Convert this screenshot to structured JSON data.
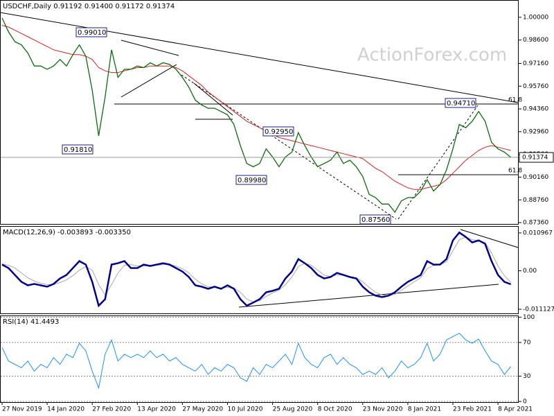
{
  "chart_data": [
    {
      "type": "line",
      "title": "USDCHF,Daily  0.91192 0.91400 0.91172 0.91374",
      "watermark": "ActionForex.com",
      "categories": [
        "27 Nov 2019",
        null,
        null,
        null,
        null,
        null,
        null,
        "14 Jan 2020",
        null,
        null,
        null,
        null,
        null,
        null,
        "27 Feb 2020",
        null,
        null,
        null,
        null,
        null,
        null,
        "13 Apr 2020",
        null,
        null,
        null,
        null,
        null,
        null,
        "27 May 2020",
        null,
        null,
        null,
        null,
        null,
        null,
        "10 Jul 2020",
        null,
        null,
        null,
        null,
        null,
        null,
        "25 Aug 2020",
        null,
        null,
        null,
        null,
        null,
        null,
        "8 Oct 2020",
        null,
        null,
        null,
        null,
        null,
        null,
        "23 Nov 2020",
        null,
        null,
        null,
        null,
        null,
        null,
        "8 Jan 2021",
        null,
        null,
        null,
        null,
        null,
        null,
        "23 Feb 2021",
        null,
        null,
        null,
        null,
        null,
        null,
        "8 Apr 2021",
        null,
        null
      ],
      "series": [
        {
          "name": "USDCHF",
          "color": "#0b6b0b",
          "values": [
            0.9996,
            0.991,
            0.985,
            0.983,
            0.978,
            0.97,
            0.97,
            0.968,
            0.97,
            0.974,
            0.97,
            0.977,
            0.983,
            0.976,
            0.955,
            0.927,
            0.951,
            0.98,
            0.963,
            0.968,
            0.968,
            0.97,
            0.969,
            0.972,
            0.97,
            0.972,
            0.971,
            0.968,
            0.963,
            0.957,
            0.949,
            0.946,
            0.944,
            0.944,
            0.942,
            0.94,
            0.934,
            0.921,
            0.91,
            0.908,
            0.91,
            0.919,
            0.914,
            0.908,
            0.914,
            0.917,
            0.929,
            0.921,
            0.914,
            0.908,
            0.91,
            0.912,
            0.917,
            0.91,
            0.912,
            0.908,
            0.902,
            0.891,
            0.889,
            0.885,
            0.885,
            0.88,
            0.887,
            0.889,
            0.889,
            0.893,
            0.9,
            0.893,
            0.897,
            0.906,
            0.919,
            0.934,
            0.932,
            0.936,
            0.942,
            0.936,
            0.923,
            0.919,
            0.917,
            0.91374
          ]
        },
        {
          "name": "MA",
          "color": "#d42020",
          "values": [
            0.995,
            0.994,
            0.992,
            0.99,
            0.988,
            0.986,
            0.984,
            0.982,
            0.98,
            0.979,
            0.978,
            0.977,
            0.977,
            0.976,
            0.974,
            0.969,
            0.967,
            0.966,
            0.966,
            0.967,
            0.968,
            0.969,
            0.969,
            0.97,
            0.97,
            0.97,
            0.97,
            0.969,
            0.967,
            0.964,
            0.961,
            0.958,
            0.954,
            0.951,
            0.948,
            0.945,
            0.942,
            0.939,
            0.936,
            0.934,
            0.932,
            0.93,
            0.928,
            0.926,
            0.925,
            0.924,
            0.923,
            0.922,
            0.921,
            0.92,
            0.919,
            0.918,
            0.917,
            0.916,
            0.915,
            0.914,
            0.913,
            0.91,
            0.907,
            0.905,
            0.902,
            0.899,
            0.897,
            0.895,
            0.894,
            0.894,
            0.895,
            0.896,
            0.897,
            0.9,
            0.904,
            0.908,
            0.912,
            0.915,
            0.918,
            0.92,
            0.921,
            0.92,
            0.919,
            0.918
          ]
        }
      ],
      "ylim": [
        0.87277,
        1.01021
      ],
      "yticks": [
        {
          "value": 1.0,
          "label": "1.00000"
        },
        {
          "value": 0.986,
          "label": "0.98600"
        },
        {
          "value": 0.9716,
          "label": "0.97160"
        },
        {
          "value": 0.9576,
          "label": "0.95760"
        },
        {
          "value": 0.9436,
          "label": "0.94360"
        },
        {
          "value": 0.9296,
          "label": "0.92960"
        },
        {
          "value": 0.9156,
          "label": "0.91560"
        },
        {
          "value": 0.9016,
          "label": "0.90160"
        },
        {
          "value": 0.8876,
          "label": "0.88760"
        },
        {
          "value": 0.8736,
          "label": "0.87360"
        }
      ],
      "annotations": [
        "0.99010",
        "0.91810",
        "0.92950",
        "0.89980",
        "0.87560",
        "0.94710"
      ],
      "fib_labels": [
        "61.8",
        "61.8"
      ]
    },
    {
      "type": "line",
      "title": "MACD(12,26,9) -0.003893 -0.003350",
      "series": [
        {
          "name": "MACD",
          "color": "#00008b",
          "values": [
            0.0018,
            0.0008,
            -0.0012,
            -0.0032,
            -0.0042,
            -0.0038,
            -0.0042,
            -0.0046,
            -0.0038,
            -0.0022,
            -0.0012,
            0.0008,
            0.0028,
            0.0018,
            -0.0032,
            -0.0101,
            -0.0082,
            0.0018,
            0.0022,
            0.0028,
            0.0008,
            0.0008,
            0.0018,
            0.0014,
            0.0018,
            0.0022,
            0.0018,
            0.0008,
            -0.0002,
            -0.0018,
            -0.0042,
            -0.0046,
            -0.0052,
            -0.0046,
            -0.0052,
            -0.0042,
            -0.0052,
            -0.0082,
            -0.0101,
            -0.0092,
            -0.0082,
            -0.0062,
            -0.0058,
            -0.0052,
            -0.0022,
            -0.0002,
            0.0034,
            0.0022,
            0.0008,
            -0.0012,
            -0.0022,
            -0.0018,
            -0.0006,
            -0.0012,
            -0.0018,
            -0.0022,
            -0.0046,
            -0.0062,
            -0.0072,
            -0.0076,
            -0.0072,
            -0.0062,
            -0.0046,
            -0.0032,
            -0.0022,
            -0.0012,
            0.0028,
            0.0018,
            0.0018,
            0.0034,
            0.0088,
            0.0111,
            0.0098,
            0.0082,
            0.0088,
            0.0078,
            0.0028,
            -0.0012,
            -0.0032,
            -0.003893
          ]
        },
        {
          "name": "Signal",
          "color": "#a8a8a8",
          "values": [
            0.002,
            0.0016,
            0.0008,
            -0.0006,
            -0.002,
            -0.003,
            -0.0036,
            -0.004,
            -0.004,
            -0.0034,
            -0.0026,
            -0.0014,
            0.0002,
            0.0012,
            0.0002,
            -0.004,
            -0.007,
            -0.004,
            -0.0006,
            0.0016,
            0.0018,
            0.0014,
            0.0014,
            0.0014,
            0.0016,
            0.0018,
            0.0018,
            0.0014,
            0.0006,
            -0.0006,
            -0.0024,
            -0.0038,
            -0.0046,
            -0.0048,
            -0.005,
            -0.0048,
            -0.005,
            -0.0062,
            -0.0082,
            -0.009,
            -0.0086,
            -0.0074,
            -0.0064,
            -0.0056,
            -0.004,
            -0.0018,
            0.0012,
            0.0022,
            0.0016,
            0.0002,
            -0.0012,
            -0.0016,
            -0.0012,
            -0.0012,
            -0.0016,
            -0.002,
            -0.0032,
            -0.0048,
            -0.0062,
            -0.007,
            -0.0072,
            -0.0068,
            -0.0056,
            -0.0044,
            -0.0032,
            -0.002,
            0.0006,
            0.0016,
            0.0018,
            0.0026,
            0.0058,
            0.009,
            0.0098,
            0.009,
            0.0088,
            0.0082,
            0.0052,
            0.0014,
            -0.0014,
            -0.00335
          ]
        }
      ],
      "ylim": [
        -0.01232,
        0.01276
      ],
      "yticks": [
        0.010967,
        {
          "value": 0,
          "label": "0.00"
        },
        -0.011127
      ]
    },
    {
      "type": "line",
      "title": "RSI(14) 41.4493",
      "series": [
        {
          "name": "RSI",
          "color": "#1e90ff",
          "values": [
            64,
            48,
            44,
            40,
            48,
            36,
            44,
            40,
            52,
            44,
            56,
            52,
            69,
            60,
            36,
            16,
            56,
            73,
            48,
            56,
            52,
            56,
            52,
            60,
            52,
            56,
            48,
            52,
            44,
            40,
            36,
            44,
            32,
            40,
            36,
            44,
            40,
            28,
            24,
            40,
            32,
            44,
            40,
            48,
            56,
            44,
            69,
            52,
            44,
            40,
            52,
            56,
            44,
            52,
            44,
            40,
            32,
            36,
            32,
            40,
            28,
            36,
            48,
            40,
            44,
            52,
            69,
            48,
            56,
            73,
            77,
            81,
            73,
            69,
            74,
            60,
            48,
            44,
            32,
            41.4493
          ]
        }
      ],
      "ylim": [
        -0.8,
        101.2
      ],
      "yticks": [
        100,
        70,
        30,
        0
      ],
      "grid": true
    }
  ]
}
